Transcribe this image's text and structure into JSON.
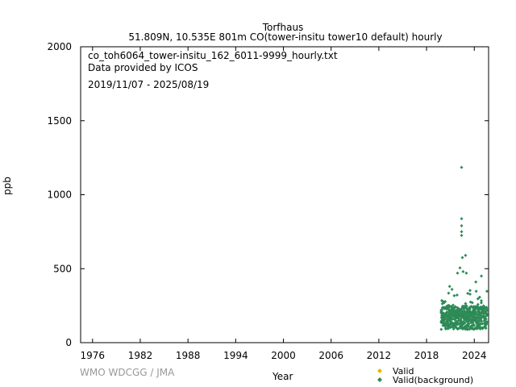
{
  "header": {
    "station": "Torfhaus",
    "subtitle": "51.809N, 10.535E 801m    CO(tower-insitu tower10 default) hourly"
  },
  "annotations": {
    "filename": "co_toh6064_tower-insitu_162_6011-9999_hourly.txt",
    "provider": "Data provided by ICOS",
    "period": "2019/11/07 - 2025/08/19"
  },
  "watermark": "WMO WDCGG / JMA",
  "chart_data": {
    "type": "scatter",
    "xlabel": "Year",
    "ylabel": "ppb",
    "xlim": [
      1974.5,
      2025.8
    ],
    "ylim": [
      0,
      2000
    ],
    "x_ticks": [
      1976,
      1982,
      1988,
      1994,
      2000,
      2006,
      2012,
      2018,
      2024
    ],
    "y_ticks": [
      0,
      500,
      1000,
      1500,
      2000
    ],
    "legend": {
      "placement": "bottom-right"
    },
    "series": [
      {
        "name": "Valid",
        "color": "#e6b800",
        "points": []
      },
      {
        "name": "Valid(background)",
        "color": "#2e8b57",
        "band": {
          "x_start": 2019.85,
          "x_end": 2025.63,
          "typical_low": 90,
          "typical_high": 250
        },
        "outliers": [
          [
            2022.4,
            1185
          ],
          [
            2022.4,
            838
          ],
          [
            2022.4,
            790
          ],
          [
            2022.4,
            750
          ],
          [
            2022.4,
            725
          ],
          [
            2022.5,
            575
          ],
          [
            2022.9,
            590
          ],
          [
            2022.2,
            505
          ],
          [
            2021.9,
            470
          ],
          [
            2023.0,
            470
          ],
          [
            2022.6,
            480
          ],
          [
            2024.9,
            450
          ],
          [
            2020.9,
            380
          ],
          [
            2021.2,
            360
          ],
          [
            2024.2,
            410
          ]
        ]
      }
    ]
  }
}
